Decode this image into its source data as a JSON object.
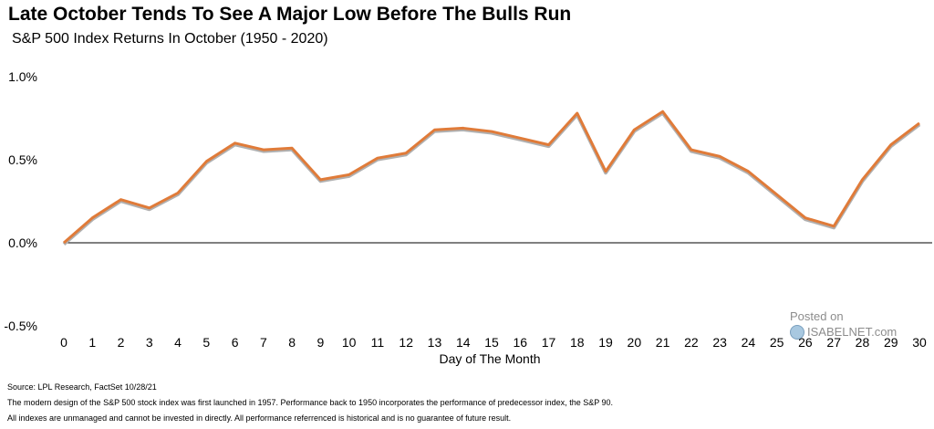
{
  "chart_data": {
    "type": "line",
    "title": "Late October Tends To See A Major Low Before The Bulls Run",
    "subtitle": "S&P 500 Index Returns In October (1950 - 2020)",
    "xlabel": "Day of The Month",
    "ylabel": "",
    "x": [
      0,
      1,
      2,
      3,
      4,
      5,
      6,
      7,
      8,
      9,
      10,
      11,
      12,
      13,
      14,
      15,
      16,
      17,
      18,
      19,
      20,
      21,
      22,
      23,
      24,
      25,
      26,
      27,
      28,
      29,
      30
    ],
    "series": [
      {
        "name": "S&P 500 Index Returns",
        "color": "#e07b39",
        "values": [
          0.0,
          0.15,
          0.26,
          0.21,
          0.3,
          0.49,
          0.6,
          0.56,
          0.57,
          0.38,
          0.41,
          0.51,
          0.54,
          0.68,
          0.69,
          0.67,
          0.63,
          0.59,
          0.78,
          0.43,
          0.68,
          0.79,
          0.56,
          0.52,
          0.43,
          0.29,
          0.15,
          0.1,
          0.38,
          0.59,
          0.72
        ]
      }
    ],
    "ylim": [
      -0.5,
      1.0
    ],
    "yticks": [
      -0.5,
      0.0,
      0.5,
      1.0
    ],
    "ytick_labels": [
      "-0.5%",
      "0.0%",
      "0.5%",
      "1.0%"
    ],
    "grid": false
  },
  "footnotes": {
    "source": "Source: LPL Research, FactSet 10/28/21",
    "note1": "The modern design of the S&P 500 stock index was first launched in 1957. Performance back to 1950 incorporates the performance of predecessor index, the S&P 90.",
    "note2": "All indexes are unmanaged and cannot be invested in directly. All performance referrenced is historical and is no guarantee of future result."
  },
  "watermark": {
    "posted": "Posted on",
    "site": "ISABELNET.com"
  }
}
